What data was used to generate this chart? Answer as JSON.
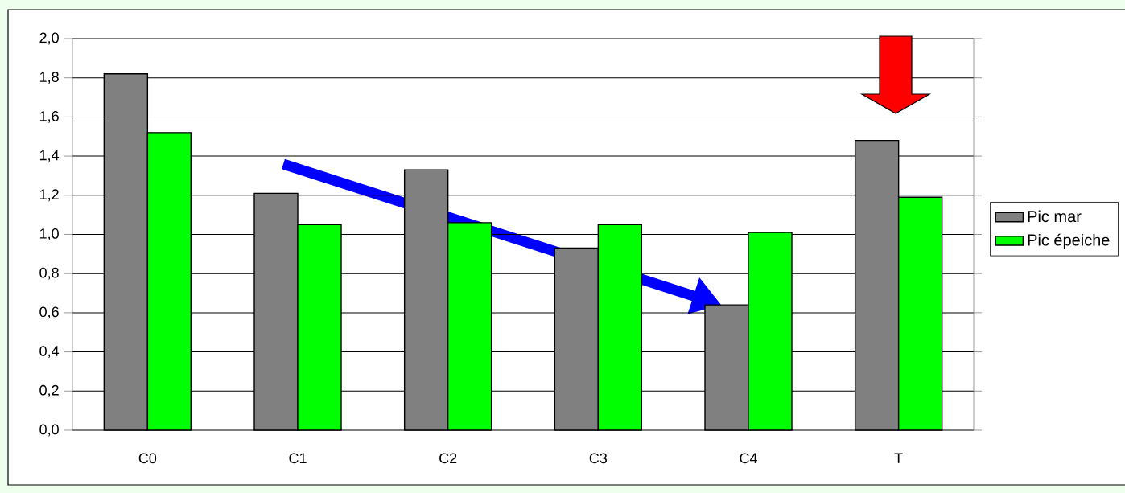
{
  "chart_data": {
    "type": "bar",
    "categories": [
      "C0",
      "C1",
      "C2",
      "C3",
      "C4",
      "T"
    ],
    "series": [
      {
        "name": "Pic mar",
        "color": "#808080",
        "values": [
          1.82,
          1.21,
          1.33,
          0.93,
          0.64,
          1.48
        ]
      },
      {
        "name": "Pic épeiche",
        "color": "#00ff00",
        "values": [
          1.52,
          1.05,
          1.06,
          1.05,
          1.01,
          1.19
        ]
      }
    ],
    "ylim": [
      0,
      2
    ],
    "yticks": [
      {
        "value": 0,
        "label": "0,0"
      },
      {
        "value": 0.2,
        "label": "0,2"
      },
      {
        "value": 0.4,
        "label": "0,4"
      },
      {
        "value": 0.6,
        "label": "0,6"
      },
      {
        "value": 0.8,
        "label": "0,8"
      },
      {
        "value": 1,
        "label": "1,0"
      },
      {
        "value": 1.2,
        "label": "1,2"
      },
      {
        "value": 1.4,
        "label": "1,4"
      },
      {
        "value": 1.6,
        "label": "1,6"
      },
      {
        "value": 1.8,
        "label": "1,8"
      },
      {
        "value": 2,
        "label": "2,0"
      }
    ],
    "grid": "y",
    "legend": "right"
  }
}
